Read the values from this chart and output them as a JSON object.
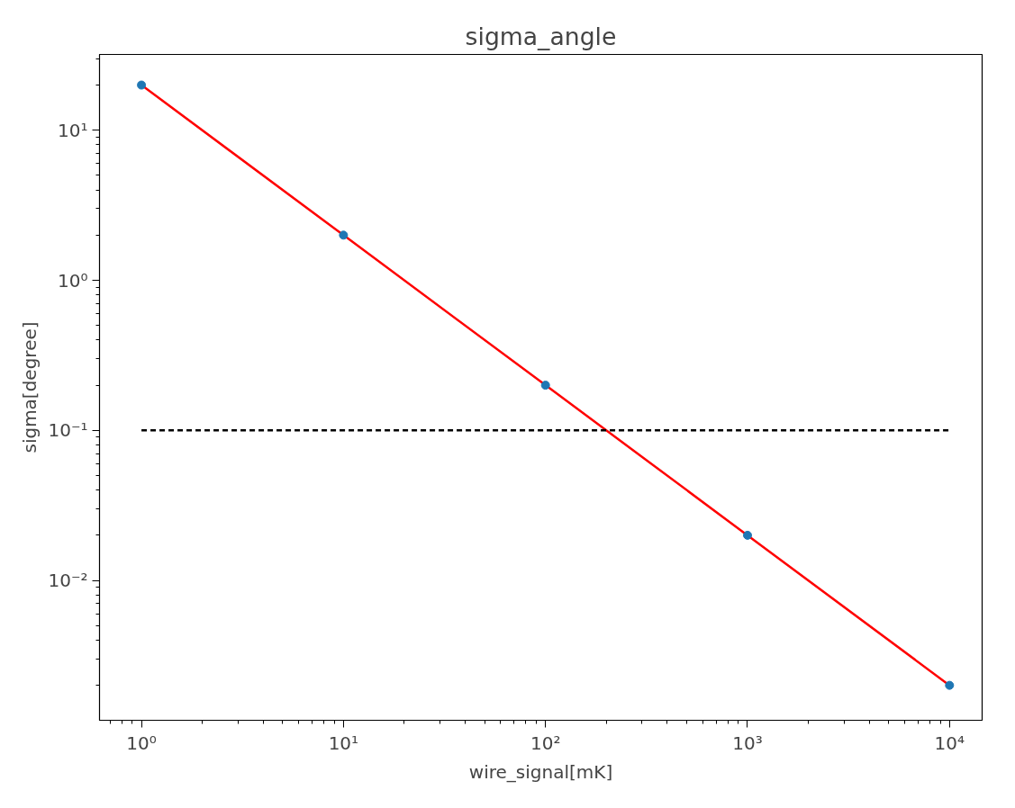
{
  "chart_data": {
    "type": "scatter",
    "title": "sigma_angle",
    "xlabel": "wire_signal[mK]",
    "ylabel": "sigma[degree]",
    "log": "xy",
    "grid": false,
    "x": [
      1,
      10,
      100,
      1000,
      10000
    ],
    "series": [
      {
        "type": "line",
        "color": "#ff0000",
        "x": [
          1,
          10,
          100,
          1000,
          10000
        ],
        "values": [
          20,
          2,
          0.2,
          0.02,
          0.002
        ],
        "line_style": "solid",
        "marker": "none"
      },
      {
        "color": "#1f77b4",
        "values": [
          20,
          2,
          0.2,
          0.02,
          0.002
        ],
        "marker": "circle"
      },
      {
        "type": "line",
        "color": "#000000",
        "x": [
          1,
          10000
        ],
        "values": [
          0.1,
          0.1
        ],
        "line_style": "dashed",
        "marker": "none"
      }
    ],
    "xlim": [
      0.62,
      14500
    ],
    "ylim": [
      0.00117,
      32
    ],
    "xticks": [
      {
        "value": 1,
        "label": "10⁰"
      },
      {
        "value": 10,
        "label": "10¹"
      },
      {
        "value": 100,
        "label": "10²"
      },
      {
        "value": 1000,
        "label": "10³"
      },
      {
        "value": 10000,
        "label": "10⁴"
      }
    ],
    "yticks": [
      {
        "value": 0.01,
        "label": "10⁻²"
      },
      {
        "value": 0.1,
        "label": "10⁻¹"
      },
      {
        "value": 1,
        "label": "10⁰"
      },
      {
        "value": 10,
        "label": "10¹"
      }
    ]
  }
}
